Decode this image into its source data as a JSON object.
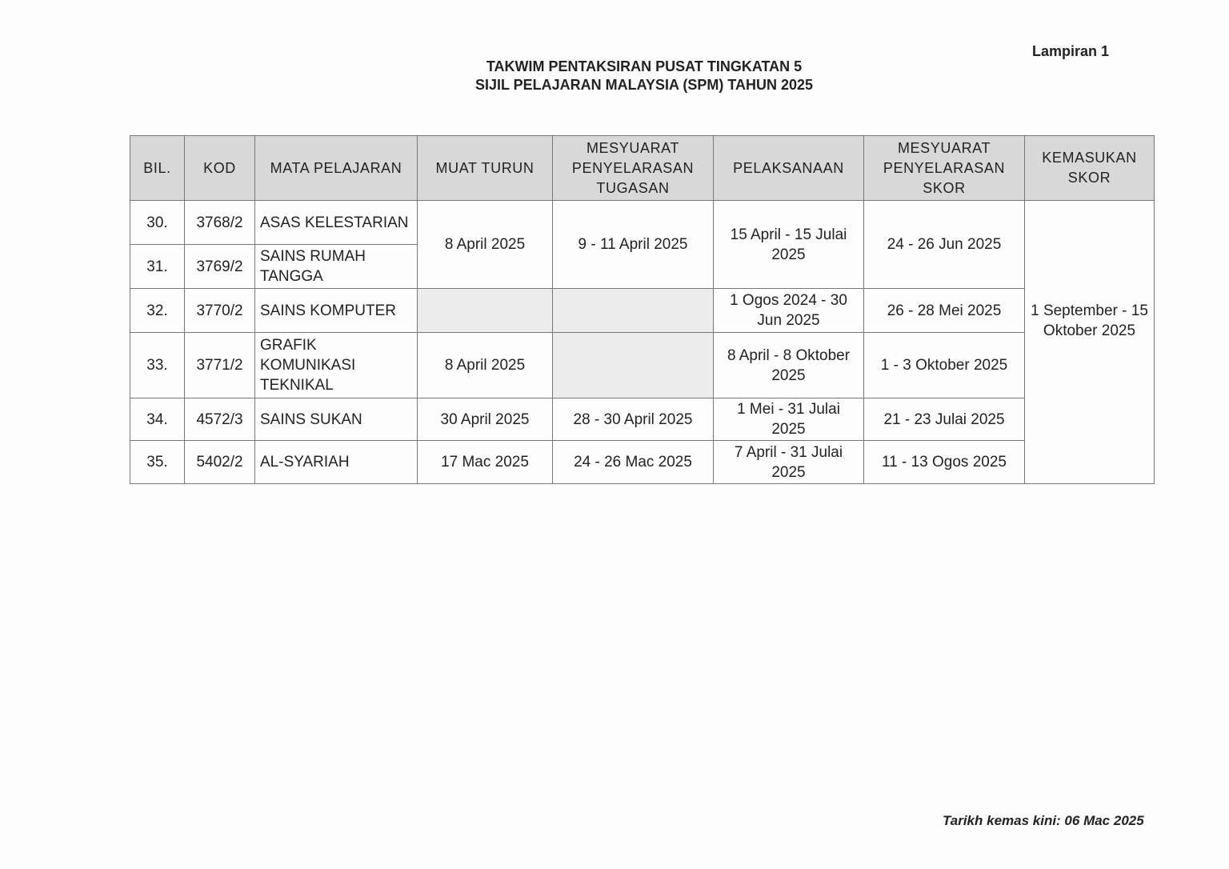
{
  "lampiran": "Lampiran 1",
  "title_line1": "TAKWIM PENTAKSIRAN PUSAT TINGKATAN 5",
  "title_line2": "SIJIL PELAJARAN MALAYSIA (SPM) TAHUN 2025",
  "headers": [
    "BIL.",
    "KOD",
    "MATA PELAJARAN",
    "MUAT TURUN",
    "MESYUARAT PENYELARASAN TUGASAN",
    "PELAKSANAAN",
    "MESYUARAT PENYELARASAN SKOR",
    "KEMASUKAN SKOR"
  ],
  "shaded_color": "#ececec",
  "rows": [
    {
      "bil": "30.",
      "kod": "3768/2",
      "subject": "ASAS KELESTARIAN"
    },
    {
      "bil": "31.",
      "kod": "3769/2",
      "subject": "SAINS RUMAH TANGGA"
    },
    {
      "bil": "32.",
      "kod": "3770/2",
      "subject": "SAINS KOMPUTER"
    },
    {
      "bil": "33.",
      "kod": "3771/2",
      "subject": "GRAFIK KOMUNIKASI TEKNIKAL"
    },
    {
      "bil": "34.",
      "kod": "4572/3",
      "subject": "SAINS SUKAN"
    },
    {
      "bil": "35.",
      "kod": "5402/2",
      "subject": "AL-SYARIAH"
    }
  ],
  "cells": {
    "r30_31": {
      "muat_turun": "8 April 2025",
      "tugasan": "9 - 11 April 2025",
      "pelaksanaan": "15 April - 15 Julai 2025",
      "skor": "24 - 26 Jun 2025"
    },
    "r32": {
      "pelaksanaan": "1 Ogos 2024 - 30 Jun 2025",
      "skor": "26 - 28 Mei 2025"
    },
    "r33": {
      "muat_turun": "8 April 2025",
      "pelaksanaan": "8 April - 8 Oktober 2025",
      "skor": "1 - 3 Oktober 2025"
    },
    "r34": {
      "muat_turun": "30 April 2025",
      "tugasan": "28 - 30 April 2025",
      "pelaksanaan": "1 Mei - 31 Julai 2025",
      "skor": "21 - 23 Julai 2025"
    },
    "r35": {
      "muat_turun": "17 Mac 2025",
      "tugasan": "24 - 26 Mac 2025",
      "pelaksanaan": "7 April - 31 Julai 2025",
      "skor": "11 - 13 Ogos 2025"
    },
    "kemasukan_skor": "1 September - 15 Oktober 2025"
  },
  "footer": "Tarikh kemas kini: 06 Mac 2025"
}
